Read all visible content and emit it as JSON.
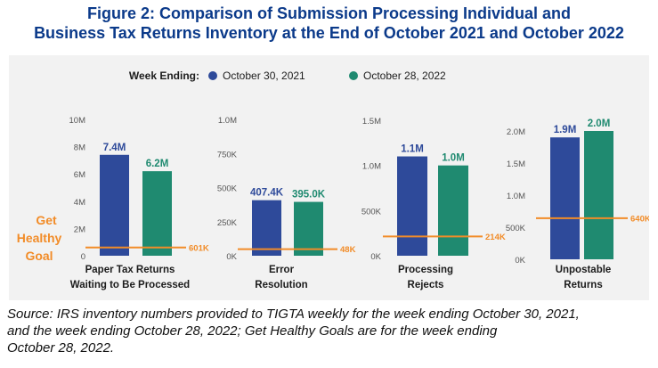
{
  "title": {
    "line1": "Figure 2:  Comparison of Submission Processing Individual and",
    "line2": "Business Tax Returns Inventory at the End of October 2021 and October 2022"
  },
  "legend": {
    "label": "Week Ending:",
    "series": [
      {
        "name": "October 30, 2021",
        "color": "#2e4a9a"
      },
      {
        "name": "October 28, 2022",
        "color": "#1f8a70"
      }
    ]
  },
  "goal_label": {
    "line1": "Get",
    "line2": "Healthy",
    "line3": "Goal"
  },
  "colors": {
    "goal": "#f28c28",
    "text": "#1c1c1c",
    "axis_text": "#555555",
    "value_2021": "#2e4a9a",
    "value_2022": "#1f8a70"
  },
  "chart_data": [
    {
      "type": "bar",
      "category_label": [
        "Paper Tax Returns",
        "Waiting to Be Processed"
      ],
      "yticks": [
        0,
        2,
        4,
        6,
        8,
        10
      ],
      "ytick_labels": [
        "0",
        "2M",
        "4M",
        "6M",
        "8M",
        "10M"
      ],
      "ylim": [
        0,
        10
      ],
      "unit": "M",
      "series": [
        {
          "name": "October 30, 2021",
          "value": 7.4,
          "label": "7.4M"
        },
        {
          "name": "October 28, 2022",
          "value": 6.2,
          "label": "6.2M"
        }
      ],
      "goal": {
        "value": 0.601,
        "label": "601K"
      }
    },
    {
      "type": "bar",
      "category_label": [
        "Error",
        "Resolution"
      ],
      "yticks": [
        0,
        250,
        500,
        750,
        1000
      ],
      "ytick_labels": [
        "0K",
        "250K",
        "500K",
        "750K",
        "1.0M"
      ],
      "ylim": [
        0,
        1000
      ],
      "unit": "K",
      "series": [
        {
          "name": "October 30, 2021",
          "value": 407.4,
          "label": "407.4K"
        },
        {
          "name": "October 28, 2022",
          "value": 395.0,
          "label": "395.0K"
        }
      ],
      "goal": {
        "value": 48,
        "label": "48K"
      }
    },
    {
      "type": "bar",
      "category_label": [
        "Processing",
        "Rejects"
      ],
      "yticks": [
        0,
        500,
        1000,
        1500
      ],
      "ytick_labels": [
        "0K",
        "500K",
        "1.0M",
        "1.5M"
      ],
      "ylim": [
        0,
        1500
      ],
      "unit": "K",
      "series": [
        {
          "name": "October 30, 2021",
          "value": 1100,
          "label": "1.1M"
        },
        {
          "name": "October 28, 2022",
          "value": 1000,
          "label": "1.0M"
        }
      ],
      "goal": {
        "value": 214,
        "label": "214K"
      }
    },
    {
      "type": "bar",
      "category_label": [
        "Unpostable",
        "Returns"
      ],
      "yticks": [
        0,
        500,
        1000,
        1500,
        2000
      ],
      "ytick_labels": [
        "0K",
        "500K",
        "1.0M",
        "1.5M",
        "2.0M"
      ],
      "ylim": [
        0,
        2000
      ],
      "unit": "K",
      "series": [
        {
          "name": "October 30, 2021",
          "value": 1900,
          "label": "1.9M"
        },
        {
          "name": "October 28, 2022",
          "value": 2000,
          "label": "2.0M"
        }
      ],
      "goal": {
        "value": 640,
        "label": "640K"
      }
    }
  ],
  "source": {
    "line1": "Source:  IRS inventory numbers provided to TIGTA weekly for the week ending October 30, 2021,",
    "line2": "and the week ending October 28, 2022; Get Healthy Goals are for the week ending",
    "line3": "October 28, 2022."
  }
}
